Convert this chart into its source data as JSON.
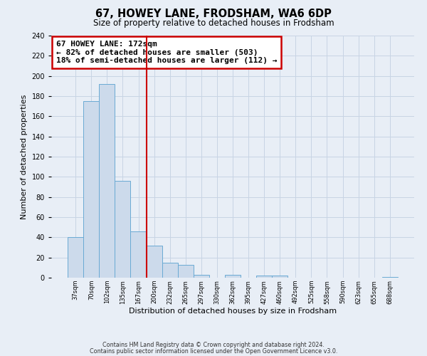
{
  "title": "67, HOWEY LANE, FRODSHAM, WA6 6DP",
  "subtitle": "Size of property relative to detached houses in Frodsham",
  "xlabel": "Distribution of detached houses by size in Frodsham",
  "ylabel": "Number of detached properties",
  "bar_labels": [
    "37sqm",
    "70sqm",
    "102sqm",
    "135sqm",
    "167sqm",
    "200sqm",
    "232sqm",
    "265sqm",
    "297sqm",
    "330sqm",
    "362sqm",
    "395sqm",
    "427sqm",
    "460sqm",
    "492sqm",
    "525sqm",
    "558sqm",
    "590sqm",
    "623sqm",
    "655sqm",
    "688sqm"
  ],
  "bar_values": [
    40,
    175,
    192,
    96,
    46,
    32,
    15,
    13,
    3,
    0,
    3,
    0,
    2,
    2,
    0,
    0,
    0,
    0,
    0,
    0,
    1
  ],
  "bar_color": "#ccdaeb",
  "bar_edge_color": "#6aaad4",
  "vline_x": 4.5,
  "vline_color": "#cc0000",
  "ylim": [
    0,
    240
  ],
  "yticks": [
    0,
    20,
    40,
    60,
    80,
    100,
    120,
    140,
    160,
    180,
    200,
    220,
    240
  ],
  "annotation_title": "67 HOWEY LANE: 172sqm",
  "annotation_line1": "← 82% of detached houses are smaller (503)",
  "annotation_line2": "18% of semi-detached houses are larger (112) →",
  "annotation_box_color": "#ffffff",
  "annotation_box_edge": "#cc0000",
  "footer1": "Contains HM Land Registry data © Crown copyright and database right 2024.",
  "footer2": "Contains public sector information licensed under the Open Government Licence v3.0.",
  "grid_color": "#c8d4e4",
  "bg_color": "#e8eef6"
}
